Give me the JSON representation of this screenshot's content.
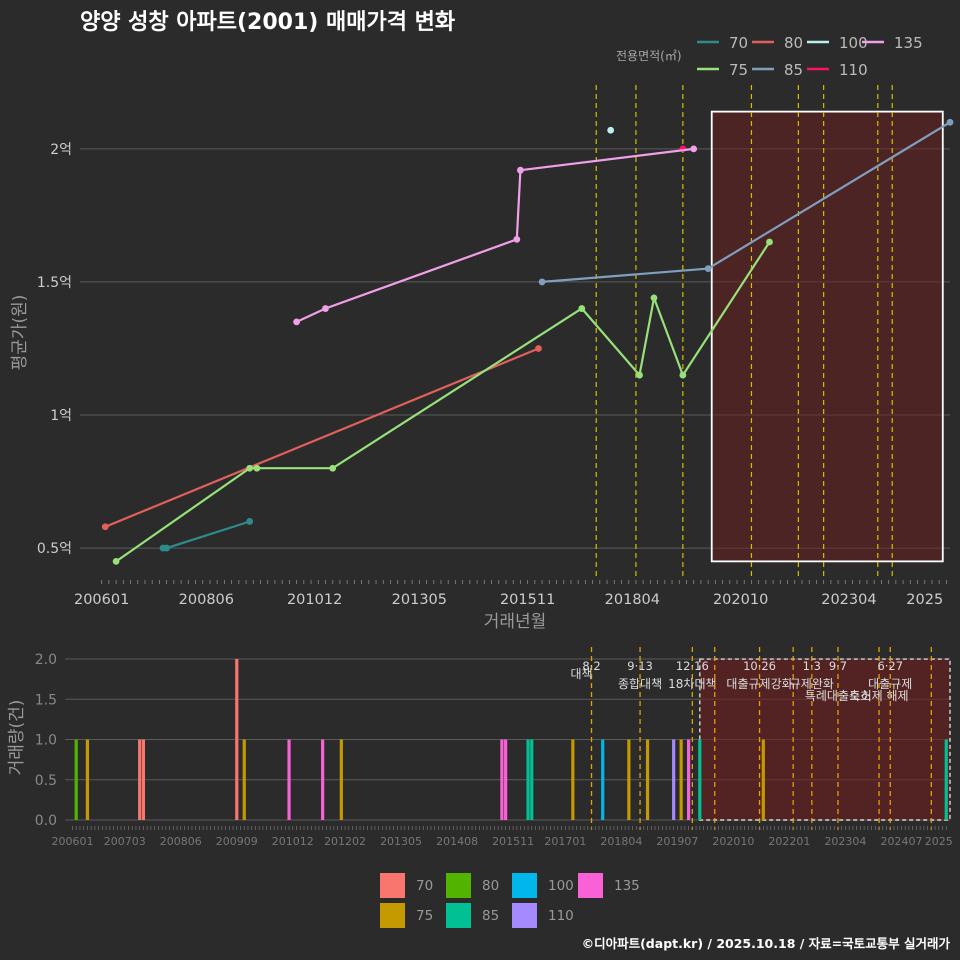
{
  "title": "양양 성창 아파트(2001) 매매가격 변화",
  "credit": "©디아파트(dapt.kr) / 2025.10.18 / 자료=국토교통부 실거래가",
  "legend_top": {
    "title": "전용면적(㎡)",
    "items": [
      {
        "label": "70",
        "color": "#2e8b8b"
      },
      {
        "label": "80",
        "color": "#e0605a"
      },
      {
        "label": "100",
        "color": "#b8f0f0"
      },
      {
        "label": "135",
        "color": "#f0a0e8"
      },
      {
        "label": "75",
        "color": "#98e07a"
      },
      {
        "label": "85",
        "color": "#7f9fbf"
      },
      {
        "label": "110",
        "color": "#ff1060"
      }
    ]
  },
  "legend_bottom": {
    "items": [
      {
        "label": "70",
        "color": "#f8766d"
      },
      {
        "label": "80",
        "color": "#53b400"
      },
      {
        "label": "100",
        "color": "#00b6eb"
      },
      {
        "label": "135",
        "color": "#fb61d7"
      },
      {
        "label": "75",
        "color": "#c49a00"
      },
      {
        "label": "85",
        "color": "#00c094"
      },
      {
        "label": "110",
        "color": "#a58aff"
      }
    ]
  },
  "chart_data": [
    {
      "type": "line",
      "title": "양양 성창 아파트(2001) 매매가격 변화",
      "xlabel": "거래년월",
      "ylabel": "평균가(원)",
      "x_unit": "months since 2006-01",
      "xlim": [
        -6,
        235
      ],
      "ylim": [
        0.38,
        2.24
      ],
      "x_ticks": [
        {
          "label": "200601",
          "x": 0
        },
        {
          "label": "200806",
          "x": 29
        },
        {
          "label": "201012",
          "x": 59
        },
        {
          "label": "201305",
          "x": 88
        },
        {
          "label": "201511",
          "x": 118
        },
        {
          "label": "201804",
          "x": 147
        },
        {
          "label": "202010",
          "x": 177
        },
        {
          "label": "202304",
          "x": 207
        },
        {
          "label": "2025",
          "x": 228
        }
      ],
      "y_ticks": [
        {
          "label": "0.5억",
          "y": 0.5
        },
        {
          "label": "1억",
          "y": 1.0
        },
        {
          "label": "1.5억",
          "y": 1.5
        },
        {
          "label": "2억",
          "y": 2.0
        }
      ],
      "vlines_x": [
        137,
        148,
        161,
        180,
        193,
        200,
        215,
        219
      ],
      "highlight": {
        "x0": 169,
        "x1": 233,
        "y0": 0.45,
        "y1": 2.14
      },
      "series": [
        {
          "name": "70",
          "color": "#2e8b8b",
          "points": [
            [
              17,
              0.5
            ],
            [
              18,
              0.5
            ],
            [
              41,
              0.6
            ]
          ]
        },
        {
          "name": "80",
          "color": "#e0605a",
          "points": [
            [
              1,
              0.58
            ],
            [
              121,
              1.25
            ]
          ]
        },
        {
          "name": "75",
          "color": "#98e07a",
          "points": [
            [
              4,
              0.45
            ],
            [
              41,
              0.8
            ],
            [
              43,
              0.8
            ],
            [
              64,
              0.8
            ],
            [
              133,
              1.4
            ],
            [
              149,
              1.15
            ],
            [
              153,
              1.44
            ],
            [
              161,
              1.15
            ],
            [
              185,
              1.65
            ]
          ]
        },
        {
          "name": "85",
          "color": "#7f9fbf",
          "points": [
            [
              122,
              1.5
            ],
            [
              168,
              1.55
            ],
            [
              235,
              2.1
            ]
          ]
        },
        {
          "name": "100",
          "color": "#b8f0f0",
          "points": [
            [
              141,
              2.07
            ]
          ]
        },
        {
          "name": "110",
          "color": "#ff1060",
          "points": [
            [
              161,
              2.0
            ]
          ]
        },
        {
          "name": "135",
          "color": "#f0a0e8",
          "points": [
            [
              54,
              1.35
            ],
            [
              62,
              1.4
            ],
            [
              115,
              1.66
            ],
            [
              116,
              1.92
            ],
            [
              164,
              2.0
            ]
          ]
        }
      ]
    },
    {
      "type": "bar",
      "ylabel": "거래량(건)",
      "x_unit": "months since 2006-01",
      "xlim": [
        -2,
        235
      ],
      "ylim": [
        0,
        2.05
      ],
      "x_ticks": [
        {
          "label": "200601",
          "x": 0
        },
        {
          "label": "200703",
          "x": 14
        },
        {
          "label": "200806",
          "x": 29
        },
        {
          "label": "200909",
          "x": 44
        },
        {
          "label": "201012",
          "x": 59
        },
        {
          "label": "201202",
          "x": 73
        },
        {
          "label": "201305",
          "x": 88
        },
        {
          "label": "201408",
          "x": 103
        },
        {
          "label": "201511",
          "x": 118
        },
        {
          "label": "201701",
          "x": 132
        },
        {
          "label": "201804",
          "x": 147
        },
        {
          "label": "201907",
          "x": 162
        },
        {
          "label": "202010",
          "x": 177
        },
        {
          "label": "202201",
          "x": 192
        },
        {
          "label": "202304",
          "x": 207
        },
        {
          "label": "202407",
          "x": 222
        },
        {
          "label": "2025",
          "x": 232
        }
      ],
      "y_ticks": [
        {
          "label": "0.0",
          "y": 0.0
        },
        {
          "label": "0.5",
          "y": 0.5
        },
        {
          "label": "1.0",
          "y": 1.0
        },
        {
          "label": "1.5",
          "y": 1.5
        },
        {
          "label": "2.0",
          "y": 2.0
        }
      ],
      "highlight": {
        "x0": 168,
        "x1": 235,
        "y0": 0,
        "y1": 2.0
      },
      "bars": [
        {
          "x": 1,
          "value": 1,
          "series": "80"
        },
        {
          "x": 4,
          "value": 1,
          "series": "75"
        },
        {
          "x": 18,
          "value": 1,
          "series": "70"
        },
        {
          "x": 19,
          "value": 1,
          "series": "70"
        },
        {
          "x": 44,
          "value": 2,
          "series": "70"
        },
        {
          "x": 46,
          "value": 1,
          "series": "75"
        },
        {
          "x": 58,
          "value": 1,
          "series": "135"
        },
        {
          "x": 67,
          "value": 1,
          "series": "135"
        },
        {
          "x": 72,
          "value": 1,
          "series": "75"
        },
        {
          "x": 115,
          "value": 1,
          "series": "135"
        },
        {
          "x": 116,
          "value": 1,
          "series": "135"
        },
        {
          "x": 122,
          "value": 1,
          "series": "85"
        },
        {
          "x": 123,
          "value": 1,
          "series": "85"
        },
        {
          "x": 134,
          "value": 1,
          "series": "75"
        },
        {
          "x": 142,
          "value": 1,
          "series": "100"
        },
        {
          "x": 149,
          "value": 1,
          "series": "75"
        },
        {
          "x": 154,
          "value": 1,
          "series": "75"
        },
        {
          "x": 161,
          "value": 1,
          "series": "110"
        },
        {
          "x": 163,
          "value": 1,
          "series": "75"
        },
        {
          "x": 165,
          "value": 1,
          "series": "135"
        },
        {
          "x": 168,
          "value": 1,
          "series": "85"
        },
        {
          "x": 185,
          "value": 1,
          "series": "75"
        },
        {
          "x": 234,
          "value": 1,
          "series": "85"
        }
      ],
      "events": [
        {
          "x": 139,
          "date": "8·2",
          "label": "대책"
        },
        {
          "x": 152,
          "date": "9·13",
          "label": "종합대책"
        },
        {
          "x": 166,
          "date": "12·16",
          "label": "18차대책"
        },
        {
          "x": 172,
          "date": "",
          "label": ""
        },
        {
          "x": 184,
          "date": "10·26",
          "label": "대출규제강화"
        },
        {
          "x": 193,
          "date": "",
          "label": ""
        },
        {
          "x": 198,
          "date": "1·3",
          "label": "규제완화"
        },
        {
          "x": 205,
          "date": "9·7",
          "label": "특례대출축소"
        },
        {
          "x": 216,
          "date": "",
          "label": "토허제 해제"
        },
        {
          "x": 219,
          "date": "6·27",
          "label": "대출규제"
        },
        {
          "x": 230,
          "date": "",
          "label": ""
        }
      ]
    }
  ]
}
